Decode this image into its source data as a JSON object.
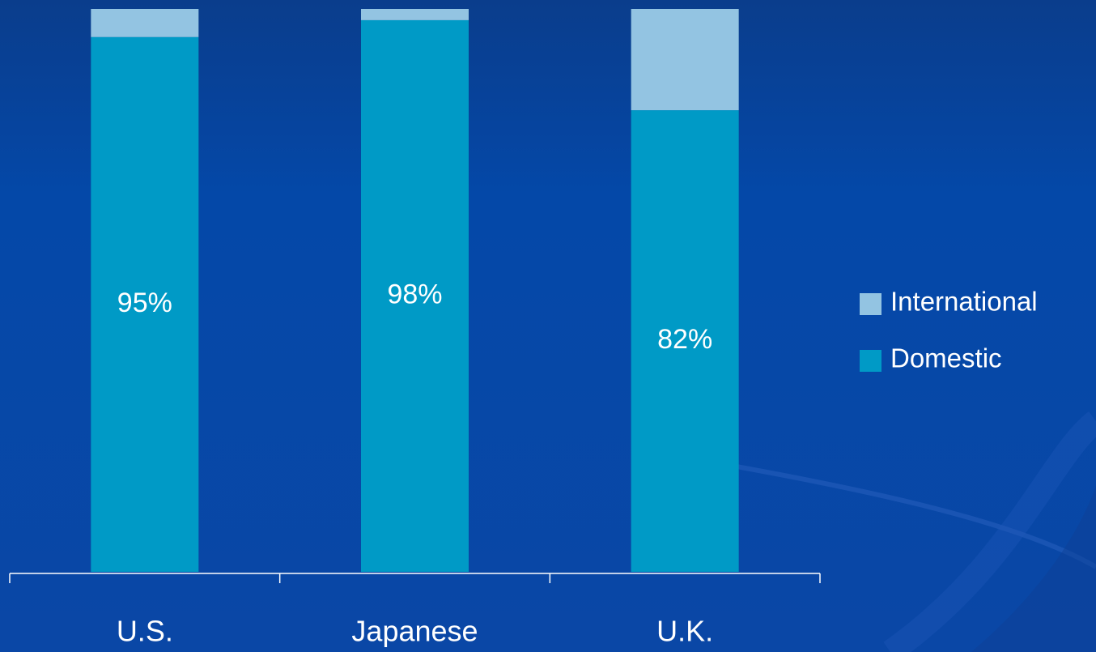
{
  "chart_data": {
    "type": "stacked_bar",
    "categories": [
      "U.S.",
      "Japanese",
      "U.K."
    ],
    "series": [
      {
        "name": "Domestic",
        "color": "#009ac6",
        "values": [
          95,
          98,
          82
        ],
        "value_labels": [
          "95%",
          "98%",
          "82%"
        ]
      },
      {
        "name": "International",
        "color": "#93c4e2",
        "values": [
          5,
          2,
          18
        ]
      }
    ],
    "ylim": [
      0,
      100
    ]
  }
}
